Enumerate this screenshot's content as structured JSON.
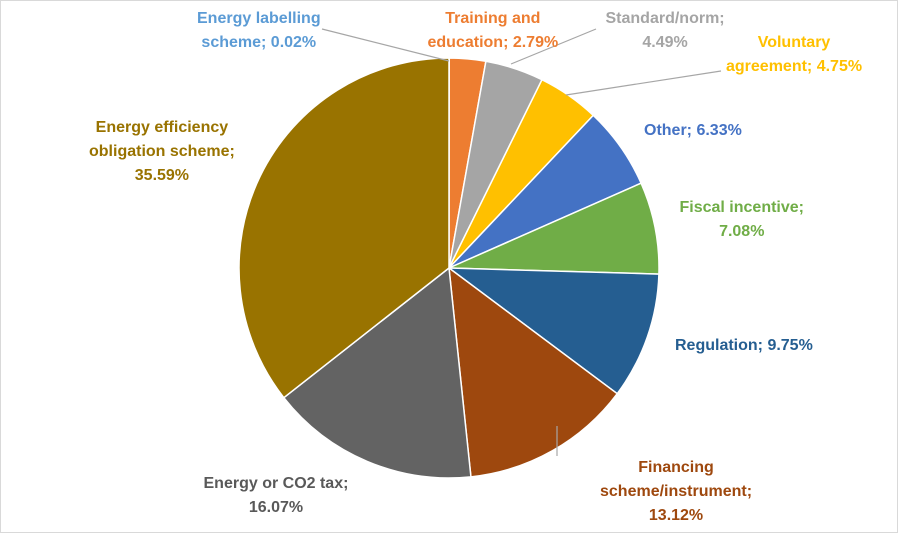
{
  "chart_data": {
    "type": "pie",
    "title": "",
    "start_angle_deg": 0,
    "direction": "clockwise",
    "slices": [
      {
        "name": "Energy labelling scheme",
        "value": 0.02,
        "label_lines": [
          "Energy labelling",
          "scheme; 0.02%"
        ],
        "color": "#5b9bd5"
      },
      {
        "name": "Training and education",
        "value": 2.79,
        "label_lines": [
          "Training and",
          "education; 2.79%"
        ],
        "color": "#ed7d31"
      },
      {
        "name": "Standard/norm",
        "value": 4.49,
        "label_lines": [
          "Standard/norm;",
          "4.49%"
        ],
        "color": "#a5a5a5"
      },
      {
        "name": "Voluntary agreement",
        "value": 4.75,
        "label_lines": [
          "Voluntary",
          "agreement; 4.75%"
        ],
        "color": "#ffc000"
      },
      {
        "name": "Other",
        "value": 6.33,
        "label_lines": [
          "Other; 6.33%"
        ],
        "color": "#4472c4"
      },
      {
        "name": "Fiscal incentive",
        "value": 7.08,
        "label_lines": [
          "Fiscal incentive;",
          "7.08%"
        ],
        "color": "#70ad47"
      },
      {
        "name": "Regulation",
        "value": 9.75,
        "label_lines": [
          "Regulation; 9.75%"
        ],
        "color": "#255e91"
      },
      {
        "name": "Financing scheme/instrument",
        "value": 13.12,
        "label_lines": [
          "Financing",
          "scheme/instrument;",
          "13.12%"
        ],
        "color": "#9e480e"
      },
      {
        "name": "Energy or CO2 tax",
        "value": 16.07,
        "label_lines": [
          "Energy or CO2 tax;",
          "16.07%"
        ],
        "color": "#636363"
      },
      {
        "name": "Energy efficiency obligation scheme",
        "value": 35.59,
        "label_lines": [
          "Energy efficiency",
          "obligation scheme;",
          "35.59%"
        ],
        "color": "#997300"
      }
    ],
    "label_color": "#595959",
    "slice_border_color": "#ffffff",
    "leader_line_color": "#a6a6a6"
  }
}
